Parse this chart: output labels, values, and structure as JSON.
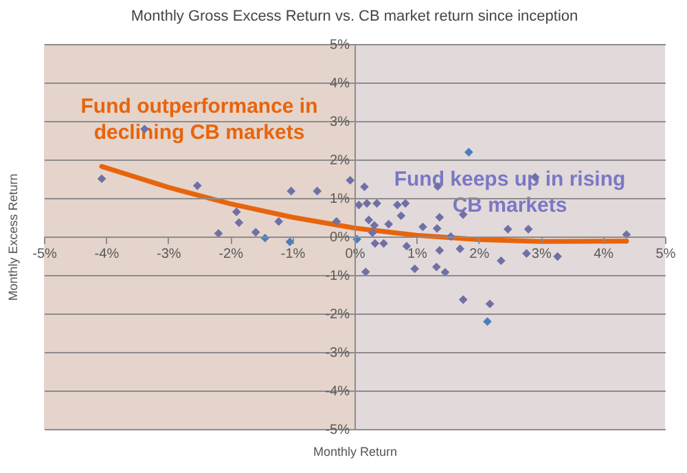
{
  "chart_data": {
    "type": "scatter",
    "title": "Monthly Gross Excess Return vs. CB market return since inception",
    "xlabel": "Monthly Return",
    "ylabel": "Monthly Excess Return",
    "xlim": [
      -5,
      5
    ],
    "ylim": [
      -5,
      5
    ],
    "xticks": [
      {
        "value": -5,
        "label": "-5%"
      },
      {
        "value": -4,
        "label": "-4%"
      },
      {
        "value": -3,
        "label": "-3%"
      },
      {
        "value": -2,
        "label": "-2%"
      },
      {
        "value": -1,
        "label": "-1%"
      },
      {
        "value": 0,
        "label": "0%"
      },
      {
        "value": 1,
        "label": "1%"
      },
      {
        "value": 2,
        "label": "2%"
      },
      {
        "value": 3,
        "label": "3%"
      },
      {
        "value": 4,
        "label": "4%"
      },
      {
        "value": 5,
        "label": "5%"
      }
    ],
    "yticks": [
      {
        "value": -5,
        "label": "-5%"
      },
      {
        "value": -4,
        "label": "-4%"
      },
      {
        "value": -3,
        "label": "-3%"
      },
      {
        "value": -2,
        "label": "-2%"
      },
      {
        "value": -1,
        "label": "-1%"
      },
      {
        "value": 0,
        "label": "0%"
      },
      {
        "value": 1,
        "label": "1%"
      },
      {
        "value": 2,
        "label": "2%"
      },
      {
        "value": 3,
        "label": "3%"
      },
      {
        "value": 4,
        "label": "4%"
      },
      {
        "value": 5,
        "label": "5%"
      }
    ],
    "grid": "y",
    "marker": "diamond",
    "bands": [
      {
        "axis": "x",
        "from": -5,
        "to": 0,
        "color": "#dfcdc2",
        "label": "Fund outperformance in declining CB markets"
      },
      {
        "axis": "x",
        "from": 0,
        "to": 5,
        "color": "#ddd2d4",
        "label": "Fund keeps up in rising CB markets"
      }
    ],
    "series": [
      {
        "color": "#6f70a6",
        "x": [
          -4.07,
          -3.38,
          -2.53,
          -2.19,
          -1.9,
          -1.86,
          -1.59,
          -1.22,
          -1.02,
          -0.6,
          -0.29,
          -0.07,
          0.16,
          0.07,
          0.2,
          0.36,
          0.23,
          0.32,
          0.29,
          0.33,
          0.47,
          0.55,
          0.69,
          0.82,
          0.75,
          0.84,
          0.97,
          1.1,
          1.34,
          1.37,
          1.33,
          1.37,
          1.32,
          1.46,
          1.55,
          1.7,
          1.75,
          1.75,
          2.18,
          2.91,
          2.47,
          2.36,
          2.8,
          2.77,
          3.27,
          4.38,
          0.18
        ],
        "values": [
          1.5,
          2.79,
          1.32,
          0.08,
          0.64,
          0.36,
          0.11,
          0.39,
          1.18,
          1.18,
          0.39,
          1.46,
          1.29,
          0.82,
          0.86,
          0.86,
          0.43,
          0.29,
          0.1,
          -0.18,
          -0.18,
          0.32,
          0.82,
          0.86,
          0.54,
          -0.25,
          -0.84,
          0.25,
          1.3,
          0.5,
          0.21,
          -0.36,
          -0.79,
          -0.93,
          0.0,
          -0.32,
          0.57,
          -1.64,
          -1.75,
          1.54,
          0.19,
          -0.63,
          0.19,
          -0.44,
          -0.52,
          0.05,
          -0.92
        ]
      },
      {
        "color": "#4a7ebb",
        "x": [
          -1.44,
          -1.04,
          0.04,
          1.84,
          2.14
        ],
        "values": [
          -0.04,
          -0.14,
          -0.07,
          2.19,
          -2.21
        ]
      },
      {
        "type": "line",
        "marker": "none",
        "color": "#e8640c",
        "x": [
          -4.07,
          -3,
          -2,
          -1,
          0,
          1,
          2,
          3,
          4.38
        ],
        "values": [
          1.82,
          1.28,
          0.85,
          0.5,
          0.22,
          0.03,
          -0.08,
          -0.13,
          -0.12
        ]
      }
    ]
  }
}
